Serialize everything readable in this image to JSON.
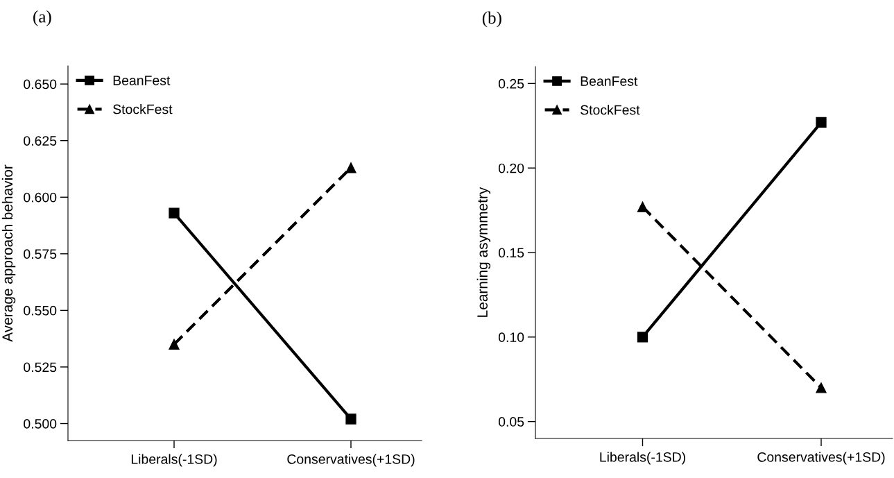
{
  "chart_data": [
    {
      "type": "line",
      "title": "(a)",
      "ylabel": "Average approach behavior",
      "categories": [
        "Liberals(-1SD)",
        "Conservatives(+1SD)"
      ],
      "ylim": [
        0.4925,
        0.658
      ],
      "yticks": [
        {
          "value": 0.5,
          "label": "0.500"
        },
        {
          "value": 0.525,
          "label": "0.525"
        },
        {
          "value": 0.55,
          "label": "0.550"
        },
        {
          "value": 0.575,
          "label": "0.575"
        },
        {
          "value": 0.6,
          "label": "0.600"
        },
        {
          "value": 0.625,
          "label": "0.625"
        },
        {
          "value": 0.65,
          "label": "0.650"
        }
      ],
      "grid": false,
      "legend": "top left",
      "series": [
        {
          "name": "BeanFest",
          "color": "#000000",
          "values": [
            0.593,
            0.502
          ],
          "marker": "square",
          "line_style": "solid"
        },
        {
          "name": "StockFest",
          "color": "#000000",
          "values": [
            0.535,
            0.613
          ],
          "marker": "triangle",
          "line_style": "dashed"
        }
      ]
    },
    {
      "type": "line",
      "title": "(b)",
      "ylabel": "Learning asymmetry",
      "categories": [
        "Liberals(-1SD)",
        "Conservatives(+1SD)"
      ],
      "ylim": [
        0.04,
        0.26
      ],
      "yticks": [
        {
          "value": 0.05,
          "label": "0.05"
        },
        {
          "value": 0.1,
          "label": "0.10"
        },
        {
          "value": 0.15,
          "label": "0.15"
        },
        {
          "value": 0.2,
          "label": "0.20"
        },
        {
          "value": 0.25,
          "label": "0.25"
        }
      ],
      "grid": false,
      "legend": "top left",
      "series": [
        {
          "name": "BeanFest",
          "color": "#000000",
          "values": [
            0.1,
            0.227
          ],
          "marker": "square",
          "line_style": "solid"
        },
        {
          "name": "StockFest",
          "color": "#000000",
          "values": [
            0.177,
            0.07
          ],
          "marker": "triangle",
          "line_style": "dashed"
        }
      ]
    }
  ]
}
